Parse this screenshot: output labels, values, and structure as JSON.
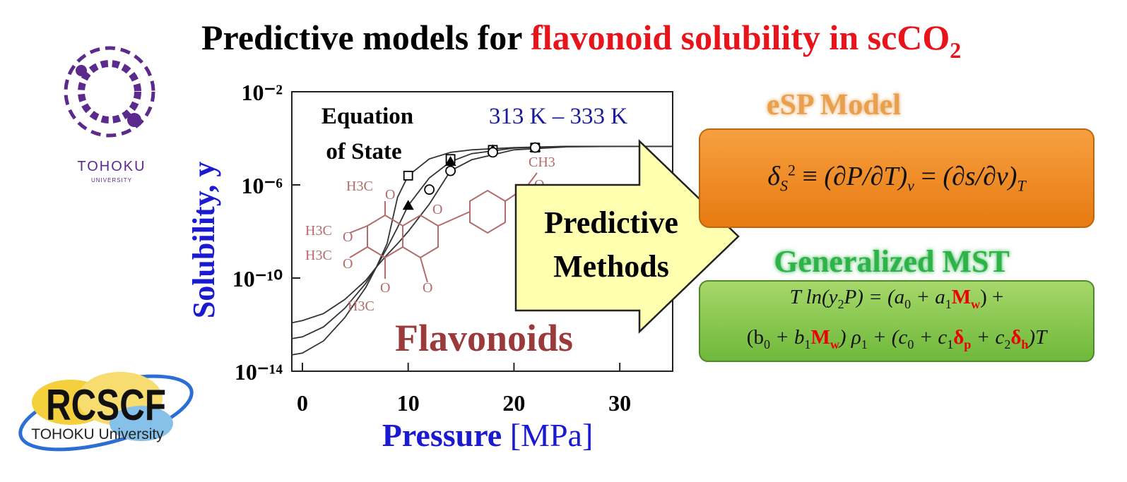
{
  "header": {
    "title_black": "Predictive models for ",
    "title_red": "flavonoid solubility in scCO",
    "title_sub": "2"
  },
  "logos": {
    "tohoku_name": "TOHOKU",
    "tohoku_sub": "UNIVERSITY",
    "rcscf_name": "RCSCF",
    "rcscf_sub": "TOHOKU University"
  },
  "chart_data": {
    "type": "line",
    "log_y": true,
    "y_label": "Solubility, y",
    "x_label": "Pressure",
    "x_unit": "[MPa]",
    "annotations": [
      "Equation",
      "of State",
      "313 K – 333 K",
      "Flavonoids"
    ],
    "molecule_labels": [
      "H3C",
      "O",
      "H3C",
      "O",
      "H3C",
      "O",
      "O",
      "H3C",
      "O",
      "CH3",
      "O",
      "O"
    ],
    "xlim": [
      -1,
      35
    ],
    "xticks": [
      0,
      10,
      20,
      30
    ],
    "ylim": [
      1e-14,
      0.01
    ],
    "yticks": [
      {
        "value": 0.01,
        "label": "10⁻²"
      },
      {
        "value": 1e-06,
        "label": "10⁻⁶"
      },
      {
        "value": 1e-10,
        "label": "10⁻¹⁰"
      },
      {
        "value": 1e-14,
        "label": "10⁻¹⁴"
      }
    ],
    "series": [
      {
        "color": "#333333",
        "marker": "none",
        "x": [
          -1,
          0,
          2,
          4,
          6,
          7,
          8,
          9,
          10,
          12,
          14,
          16,
          20,
          25,
          30,
          35
        ],
        "values": [
          5e-14,
          6e-14,
          2e-13,
          2e-12,
          4e-11,
          3e-10,
          3e-09,
          3e-07,
          2.5e-06,
          1.3e-05,
          2.5e-05,
          3.2e-05,
          4e-05,
          4.5e-05,
          4.5e-05,
          4.5e-05
        ]
      },
      {
        "color": "#333333",
        "marker": "none",
        "x": [
          -1,
          0,
          2,
          4,
          6,
          7,
          8,
          9,
          10,
          12,
          14,
          16,
          20,
          25,
          30,
          35
        ],
        "values": [
          2.5e-13,
          3e-13,
          8e-13,
          5e-12,
          6e-11,
          3e-10,
          2e-09,
          1.5e-08,
          1.3e-07,
          2e-06,
          1e-05,
          2.2e-05,
          3.8e-05,
          4.5e-05,
          4.5e-05,
          4.5e-05
        ]
      },
      {
        "color": "#333333",
        "marker": "none",
        "x": [
          -1,
          0,
          2,
          4,
          6,
          7,
          8,
          9,
          10,
          12,
          14,
          16,
          20,
          25,
          30,
          35
        ],
        "values": [
          1.2e-12,
          1.5e-12,
          3e-12,
          1.2e-11,
          8e-11,
          3e-10,
          1e-09,
          3e-09,
          1e-08,
          1.5e-07,
          4e-06,
          1.2e-05,
          3.2e-05,
          4.3e-05,
          4.5e-05,
          4.5e-05
        ]
      },
      {
        "color": "#000000",
        "marker": "square",
        "x": [
          10,
          14,
          18,
          22
        ],
        "values": [
          2.5e-06,
          1.3e-05,
          3.2e-05,
          4e-05
        ]
      },
      {
        "color": "#000000",
        "marker": "triangle",
        "x": [
          10,
          14,
          18,
          22
        ],
        "values": [
          1.3e-07,
          1e-05,
          3.2e-05,
          4e-05
        ]
      },
      {
        "color": "#000000",
        "marker": "circle",
        "x": [
          12,
          14,
          18,
          22
        ],
        "values": [
          6.3e-07,
          4e-06,
          2.5e-05,
          4e-05
        ]
      }
    ]
  },
  "arrow": {
    "line1": "Predictive",
    "line2": "Methods"
  },
  "esp": {
    "title": "eSP Model",
    "equation": [
      "δ",
      "S",
      "2",
      " ≡ ",
      "(∂P/∂T)",
      "v",
      " = ",
      "(∂s/∂v)",
      "T"
    ]
  },
  "mst": {
    "title": "Generalized MST",
    "line1": [
      "T ln(y",
      "2",
      "P) = (a",
      "0",
      " + a",
      "1",
      "M",
      "w",
      ") +"
    ],
    "line2": [
      "(b",
      "0",
      " + b",
      "1",
      "M",
      "w",
      ") ρ",
      "1",
      " + (c",
      "0",
      " + c",
      "1",
      "δ",
      "p",
      " + c",
      "2",
      "δ",
      "h",
      ")T"
    ]
  }
}
